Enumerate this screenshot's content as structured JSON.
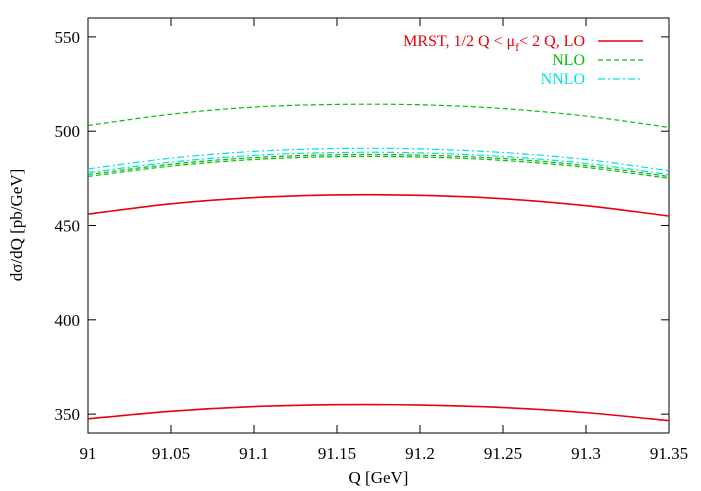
{
  "chart_data": {
    "type": "line",
    "title": "",
    "xlabel": "Q [GeV]",
    "ylabel": "dσ/dQ [pb/GeV]",
    "xlim": [
      91,
      91.35
    ],
    "ylim": [
      340,
      560
    ],
    "xticks": [
      91,
      91.05,
      91.1,
      91.15,
      91.2,
      91.25,
      91.3,
      91.35
    ],
    "xtick_labels": [
      "91",
      "91.05",
      "91.1",
      "91.15",
      "91.2",
      "91.25",
      "91.3",
      "91.35"
    ],
    "yticks": [
      350,
      400,
      450,
      500,
      550
    ],
    "ytick_labels": [
      "350",
      "400",
      "450",
      "500",
      "550"
    ],
    "grid": false,
    "legend_position": "top-right",
    "x": [
      91,
      91.05,
      91.1,
      91.15,
      91.2,
      91.25,
      91.3,
      91.35
    ],
    "series": [
      {
        "name": "MRST, 1/2 Q < μf< 2 Q, LO",
        "legend_main": "MRST, 1/2 Q < μ",
        "legend_sub": "f",
        "legend_tail": "< 2 Q, LO",
        "color": "#e8000b",
        "dash": "solid",
        "curves": [
          [
            456,
            461.5,
            464.8,
            466.2,
            466.0,
            464.2,
            460.5,
            455.0
          ],
          [
            347.5,
            351.5,
            354.0,
            355.0,
            354.8,
            353.5,
            350.8,
            346.5
          ]
        ]
      },
      {
        "name": "NLO",
        "legend_main": "NLO",
        "color": "#00c000",
        "dash": "dashed",
        "curves": [
          [
            503,
            509.0,
            512.8,
            514.2,
            514.0,
            512.0,
            508.0,
            502.0
          ],
          [
            477,
            482.5,
            486.0,
            487.5,
            487.3,
            485.5,
            481.8,
            476.0
          ],
          [
            476,
            481.5,
            485.0,
            486.5,
            486.3,
            484.5,
            480.8,
            475.0
          ]
        ]
      },
      {
        "name": "NNLO",
        "legend_main": "NNLO",
        "color": "#00e0e0",
        "dash": "dashdot",
        "curves": [
          [
            480,
            485.7,
            489.3,
            490.8,
            490.6,
            488.7,
            485.0,
            479.0
          ],
          [
            478,
            483.6,
            487.2,
            488.7,
            488.5,
            486.6,
            482.9,
            477.0
          ]
        ]
      }
    ]
  }
}
